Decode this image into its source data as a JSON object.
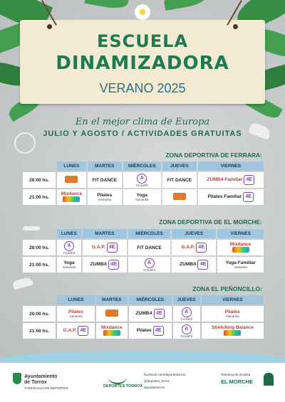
{
  "header": {
    "line1": "ESCUELA",
    "line2": "DINAMIZADORA",
    "line3": "VERANO 2025"
  },
  "subtitle": {
    "slogan": "En el mejor clima de Europa",
    "months": "JULIO Y AGOSTO / ACTIVIDADES GRATUITAS"
  },
  "days": [
    "LUNES",
    "MARTES",
    "MIÉRCOLES",
    "JUEVES",
    "VIERNES"
  ],
  "zones": [
    {
      "name": "ZONA DEPORTIVA DE FERRARA:",
      "rows": [
        {
          "time": "20:00 hs.",
          "cells": [
            " ",
            "FIT DANCE",
            "CrossFit",
            "FIT DANCE",
            "ZUMBA Familiar"
          ]
        },
        {
          "time": "21:00 hs.",
          "cells": [
            "Mixdance",
            "Pilates",
            "Yoga",
            " ",
            "Pilates Familiar"
          ]
        }
      ]
    },
    {
      "name": "ZONA DEPORTIVA DE EL MORCHE:",
      "rows": [
        {
          "time": "20:00 hs.",
          "cells": [
            "CrossFit",
            "G.A.P.",
            "FIT DANCE",
            "G.A.P.",
            "Mixdance"
          ]
        },
        {
          "time": "21:00 hs.",
          "cells": [
            "Yoga",
            "ZUMBA",
            "CrossFit",
            "ZUMBA",
            "Yoga Familiar"
          ]
        }
      ]
    },
    {
      "name": "ZONA EL PEÑONCILLO:",
      "rows": [
        {
          "time": "20:00 hs.",
          "cells": [
            "Pilates",
            " ",
            "ZUMBA",
            "CrossFit",
            "Pilates"
          ]
        },
        {
          "time": "21:00 hs.",
          "cells": [
            "G.A.P.",
            "Mixdance",
            "Pilates",
            "CrossFit",
            "Stretching Balance"
          ]
        }
      ]
    }
  ],
  "logos": {
    "manantia": "manantia",
    "crossfit_small": "CrossFit"
  },
  "footer": {
    "ayto_line1": "Ayuntamiento",
    "ayto_line2": "de Torrox",
    "ayto_line3": "CONCEJALÍA DE DEPORTES",
    "deportes": "DEPORTES TORROX",
    "social1": "facebook.com/deportestorrox",
    "social2": "@deportes_torrox",
    "social3": "deportestorrox",
    "tenencia_line1": "Tenencia de Alcaldía",
    "tenencia_line2": "EL MORCHE"
  }
}
